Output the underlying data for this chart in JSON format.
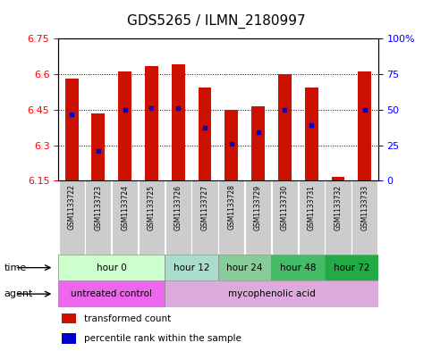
{
  "title": "GDS5265 / ILMN_2180997",
  "samples": [
    "GSM1133722",
    "GSM1133723",
    "GSM1133724",
    "GSM1133725",
    "GSM1133726",
    "GSM1133727",
    "GSM1133728",
    "GSM1133729",
    "GSM1133730",
    "GSM1133731",
    "GSM1133732",
    "GSM1133733"
  ],
  "bar_bottom": 6.15,
  "bar_tops": [
    6.58,
    6.435,
    6.61,
    6.635,
    6.64,
    6.545,
    6.45,
    6.465,
    6.6,
    6.545,
    6.165,
    6.61
  ],
  "percentile_values": [
    6.43,
    6.275,
    6.45,
    6.455,
    6.455,
    6.375,
    6.305,
    6.355,
    6.45,
    6.385,
    6.135,
    6.45
  ],
  "ylim_left": [
    6.15,
    6.75
  ],
  "yticks_left": [
    6.15,
    6.3,
    6.45,
    6.6,
    6.75
  ],
  "ytick_labels_left": [
    "6.15",
    "6.3",
    "6.45",
    "6.6",
    "6.75"
  ],
  "ylim_right": [
    0,
    100
  ],
  "yticks_right": [
    0,
    25,
    50,
    75,
    100
  ],
  "ytick_labels_right": [
    "0",
    "25",
    "50",
    "75",
    "100%"
  ],
  "bar_color": "#cc1100",
  "percentile_color": "#0000cc",
  "time_groups": [
    {
      "label": "hour 0",
      "start": 0,
      "end": 4,
      "color": "#ccffcc"
    },
    {
      "label": "hour 12",
      "start": 4,
      "end": 6,
      "color": "#aaddcc"
    },
    {
      "label": "hour 24",
      "start": 6,
      "end": 8,
      "color": "#88cc99"
    },
    {
      "label": "hour 48",
      "start": 8,
      "end": 10,
      "color": "#44bb66"
    },
    {
      "label": "hour 72",
      "start": 10,
      "end": 12,
      "color": "#22aa44"
    }
  ],
  "agent_groups": [
    {
      "label": "untreated control",
      "start": 0,
      "end": 4,
      "color": "#ee66ee"
    },
    {
      "label": "mycophenolic acid",
      "start": 4,
      "end": 12,
      "color": "#ddaadd"
    }
  ],
  "legend_bar_label": "transformed count",
  "legend_pct_label": "percentile rank within the sample",
  "sample_bg_color": "#cccccc",
  "bar_width": 0.5
}
